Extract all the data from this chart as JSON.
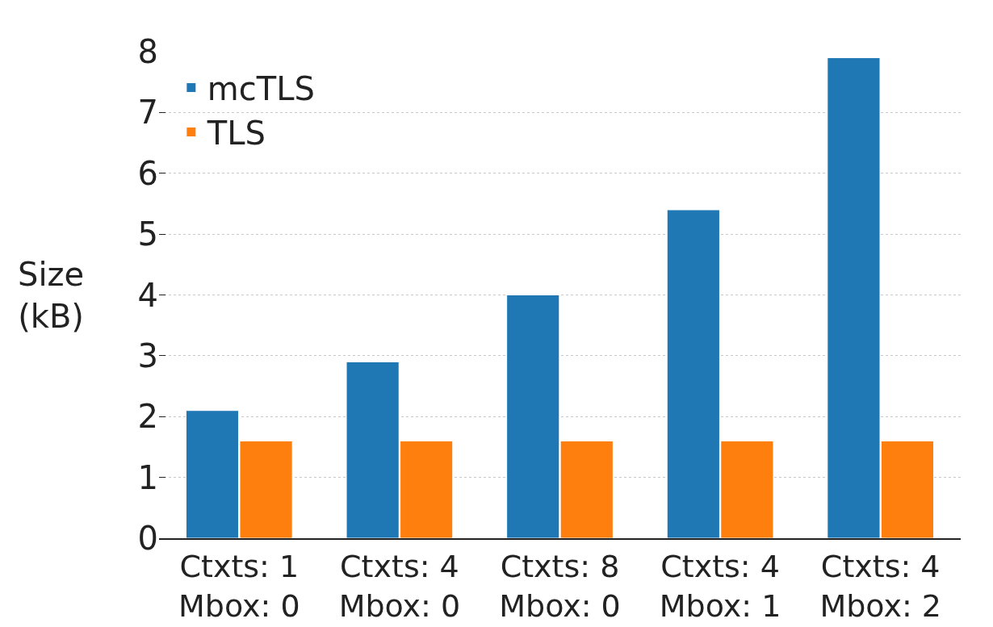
{
  "chart_data": {
    "type": "bar",
    "ylabel": "Size\n(kB)",
    "categories": [
      "Ctxts: 1\nMbox: 0",
      "Ctxts: 4\nMbox: 0",
      "Ctxts: 8\nMbox: 0",
      "Ctxts: 4\nMbox: 1",
      "Ctxts: 4\nMbox: 2"
    ],
    "series": [
      {
        "name": "mcTLS",
        "color": "#1f77b4",
        "values": [
          2.1,
          2.9,
          4.0,
          5.4,
          7.9
        ]
      },
      {
        "name": "TLS",
        "color": "#ff7f0e",
        "values": [
          1.6,
          1.6,
          1.6,
          1.6,
          1.6
        ]
      }
    ],
    "ylim": [
      0,
      8
    ],
    "yticks": [
      0,
      1,
      2,
      3,
      4,
      5,
      6,
      7,
      8
    ],
    "grid": "y",
    "legend": "top left"
  }
}
